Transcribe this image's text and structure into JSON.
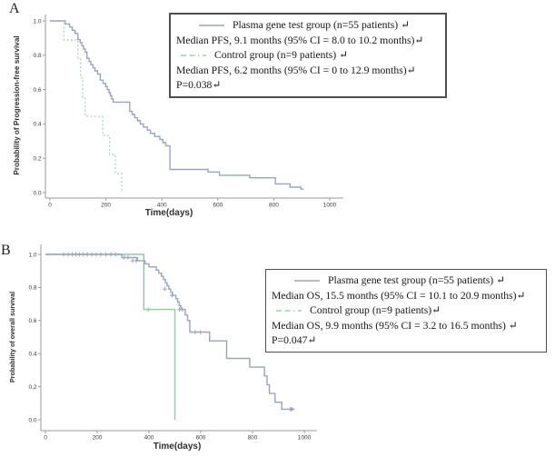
{
  "colors": {
    "plasma_line": "#99a4bc",
    "control_line_pfs": "#aed8b8",
    "control_line_os": "#8fcb9b",
    "axis_line": "#999999",
    "tick_text": "#3b3b3b",
    "legend_border": "#4e4e4e",
    "text": "#161616",
    "panel_letter": "#222222"
  },
  "panel_a": {
    "label": "A",
    "y_axis_title": "Probability of Progression-free survival",
    "x_axis_title": "Time(days)",
    "legend": {
      "group1_label": "Plasma gene test group (n=55 patients) ↵",
      "group1_median": "Median PFS, 9.1 months (95% CI = 8.0 to 10.2 months)↵",
      "group2_label": "Control group (n=9 patients) ↵",
      "group2_median": "Median PFS, 6.2 months (95% CI = 0 to 12.9 months)↵",
      "p_value": "P=0.038↵"
    }
  },
  "panel_b": {
    "label": "B",
    "y_axis_title": "Probability of overall survival",
    "x_axis_title": "Time(days)",
    "legend": {
      "group1_label": "Plasma gene test group (n=55 patients) ↵",
      "group1_median": "Median OS, 15.5 months (95% CI = 10.1 to 20.9 months)↵",
      "group2_label": "Control group (n=9 patients)↵",
      "group2_median": "Median OS, 9.9 months (95% CI = 3.2 to 16.5 months) ↵",
      "p_value": "P=0.047↵"
    }
  },
  "chart_data": [
    {
      "type": "line",
      "subtype": "kaplan-meier-step",
      "panel": "A",
      "title": "",
      "xlabel": "Time(days)",
      "ylabel": "Probability of Progression-free survival",
      "xlim": [
        0,
        1060
      ],
      "ylim": [
        0,
        1.05
      ],
      "xticks": [
        0,
        200,
        400,
        600,
        800,
        1000
      ],
      "ytick_labels": [
        "0.0",
        "0.2",
        "0.4",
        "0.6",
        "0.8",
        "1.0"
      ],
      "grid": false,
      "legend_position": "upper-right-box",
      "series": [
        {
          "name": "Plasma gene test group (n=55 patients)",
          "median": "9.1 months (95% CI = 8.0 to 10.2 months)",
          "style": "solid",
          "color": "#99a4bc",
          "end": 907,
          "steps": [
            [
              0,
              1.0
            ],
            [
              55,
              0.982
            ],
            [
              70,
              0.964
            ],
            [
              80,
              0.945
            ],
            [
              90,
              0.927
            ],
            [
              100,
              0.891
            ],
            [
              108,
              0.873
            ],
            [
              114,
              0.855
            ],
            [
              120,
              0.836
            ],
            [
              126,
              0.818
            ],
            [
              132,
              0.782
            ],
            [
              140,
              0.764
            ],
            [
              146,
              0.745
            ],
            [
              154,
              0.727
            ],
            [
              161,
              0.709
            ],
            [
              170,
              0.691
            ],
            [
              180,
              0.655
            ],
            [
              190,
              0.636
            ],
            [
              199,
              0.618
            ],
            [
              205,
              0.6
            ],
            [
              211,
              0.582
            ],
            [
              216,
              0.564
            ],
            [
              221,
              0.545
            ],
            [
              226,
              0.527
            ],
            [
              285,
              0.473
            ],
            [
              294,
              0.455
            ],
            [
              303,
              0.436
            ],
            [
              313,
              0.418
            ],
            [
              323,
              0.4
            ],
            [
              334,
              0.382
            ],
            [
              348,
              0.364
            ],
            [
              359,
              0.345
            ],
            [
              374,
              0.327
            ],
            [
              393,
              0.309
            ],
            [
              404,
              0.291
            ],
            [
              414,
              0.273
            ],
            [
              429,
              0.135
            ],
            [
              565,
              0.12
            ],
            [
              606,
              0.101
            ],
            [
              714,
              0.086
            ],
            [
              806,
              0.051
            ],
            [
              858,
              0.032
            ],
            [
              897,
              0.02
            ]
          ]
        },
        {
          "name": "Control group (n=9 patients)",
          "median": "6.2 months (95% CI = 0 to 12.9 months)",
          "style": "dotted",
          "color": "#aed8b8",
          "end": 258,
          "steps": [
            [
              0,
              1.0
            ],
            [
              50,
              0.889
            ],
            [
              100,
              0.778
            ],
            [
              109,
              0.667
            ],
            [
              117,
              0.556
            ],
            [
              126,
              0.444
            ],
            [
              189,
              0.333
            ],
            [
              213,
              0.222
            ],
            [
              234,
              0.111
            ],
            [
              257,
              0.0
            ]
          ]
        }
      ],
      "p_value": 0.038
    },
    {
      "type": "line",
      "subtype": "kaplan-meier-step",
      "panel": "B",
      "title": "",
      "xlabel": "Time(days)",
      "ylabel": "Probability of overall survival",
      "xlim": [
        0,
        1060
      ],
      "ylim": [
        0,
        1.05
      ],
      "xticks": [
        0,
        200,
        400,
        600,
        800,
        1000
      ],
      "ytick_labels": [
        "0.0",
        "0.2",
        "0.4",
        "0.6",
        "0.8",
        "1.0"
      ],
      "grid": false,
      "legend_position": "middle-right-box",
      "series": [
        {
          "name": "Plasma gene test group (n=55 patients)",
          "median": "15.5 months (95% CI = 10.1 to 20.9 months)",
          "style": "solid",
          "color": "#99a4bc",
          "end": 952,
          "end_arrow": true,
          "steps": [
            [
              0,
              1.0
            ],
            [
              295,
              0.981
            ],
            [
              355,
              0.962
            ],
            [
              385,
              0.943
            ],
            [
              400,
              0.924
            ],
            [
              428,
              0.905
            ],
            [
              438,
              0.886
            ],
            [
              448,
              0.867
            ],
            [
              456,
              0.848
            ],
            [
              463,
              0.829
            ],
            [
              470,
              0.81
            ],
            [
              477,
              0.79
            ],
            [
              484,
              0.771
            ],
            [
              491,
              0.752
            ],
            [
              504,
              0.733
            ],
            [
              511,
              0.712
            ],
            [
              517,
              0.69
            ],
            [
              523,
              0.667
            ],
            [
              540,
              0.633
            ],
            [
              549,
              0.6
            ],
            [
              558,
              0.53
            ],
            [
              634,
              0.477
            ],
            [
              700,
              0.371
            ],
            [
              789,
              0.318
            ],
            [
              846,
              0.265
            ],
            [
              856,
              0.212
            ],
            [
              865,
              0.159
            ],
            [
              887,
              0.106
            ],
            [
              913,
              0.064
            ]
          ],
          "censors": [
            [
              70,
              1
            ],
            [
              88,
              1
            ],
            [
              104,
              1
            ],
            [
              118,
              1
            ],
            [
              131,
              1
            ],
            [
              146,
              1
            ],
            [
              162,
              1
            ],
            [
              179,
              1
            ],
            [
              196,
              1
            ],
            [
              214,
              1
            ],
            [
              234,
              1
            ],
            [
              253,
              1
            ],
            [
              271,
              1
            ],
            [
              304,
              0.981
            ],
            [
              319,
              0.981
            ],
            [
              337,
              0.962
            ],
            [
              351,
              0.962
            ],
            [
              461,
              0.79
            ],
            [
              489,
              0.752
            ],
            [
              518,
              0.667
            ],
            [
              529,
              0.667
            ],
            [
              578,
              0.53
            ],
            [
              599,
              0.53
            ]
          ]
        },
        {
          "name": "Control group (n=9 patients)",
          "median": "9.9 months (95% CI = 3.2 to 16.5 months)",
          "style": "solid",
          "color": "#8fcb9b",
          "end": 500,
          "steps": [
            [
              0,
              1.0
            ],
            [
              380,
              0.667
            ],
            [
              500,
              0.0
            ]
          ],
          "censors": [
            [
              397,
              0.667
            ]
          ]
        }
      ],
      "p_value": 0.047
    }
  ]
}
